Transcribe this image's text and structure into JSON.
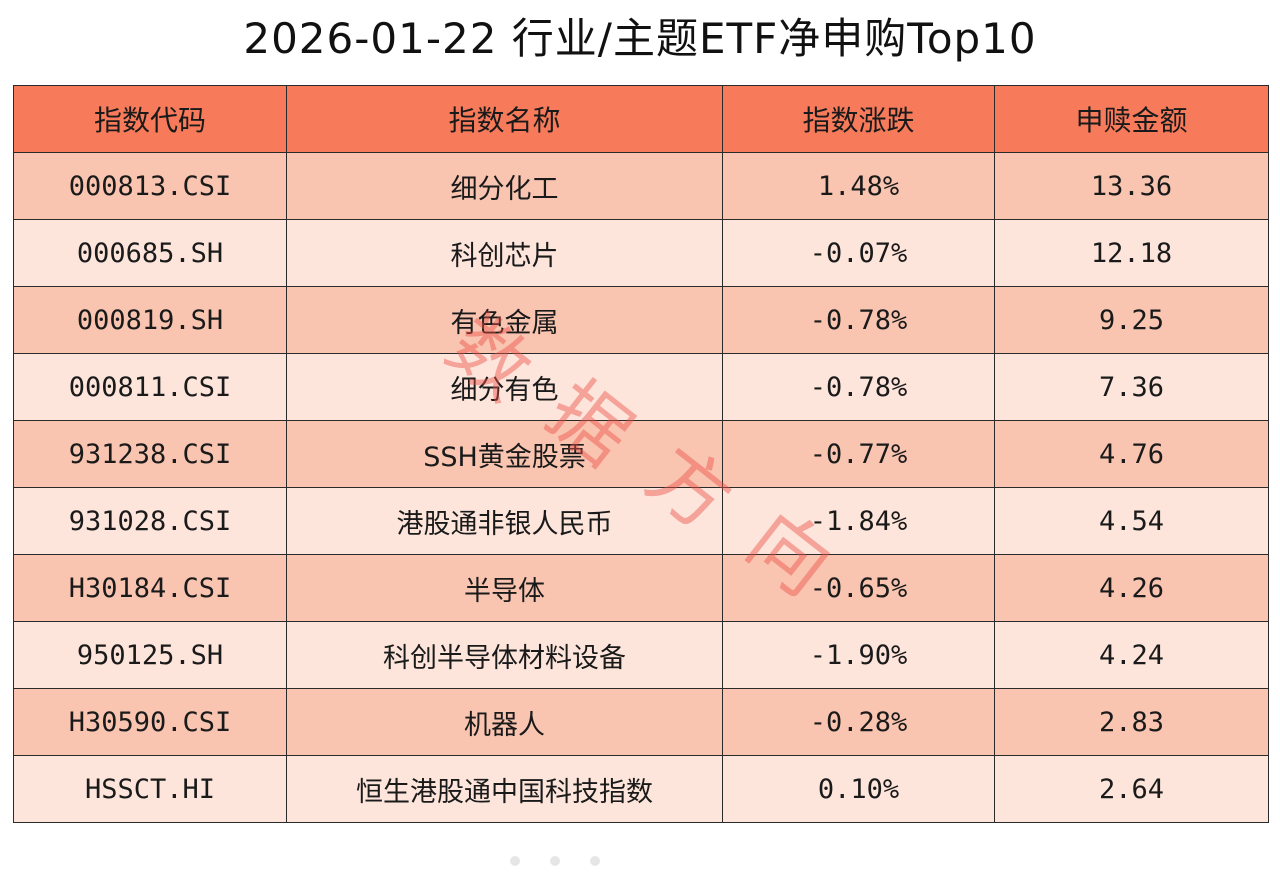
{
  "title": "2026-01-22 行业/主题ETF净申购Top10",
  "watermark": [
    "数",
    "据",
    "方",
    "向"
  ],
  "colors": {
    "header": "#f77b5a",
    "row_odd": "#f9c5b1",
    "row_even": "#fde5dc",
    "border": "#2a2a2a",
    "watermark": "#eb5046"
  },
  "chart_data": {
    "type": "table",
    "columns": [
      "指数代码",
      "指数名称",
      "指数涨跌",
      "申赎金额"
    ],
    "rows": [
      [
        "000813.CSI",
        "细分化工",
        "1.48%",
        "13.36"
      ],
      [
        "000685.SH",
        "科创芯片",
        "-0.07%",
        "12.18"
      ],
      [
        "000819.SH",
        "有色金属",
        "-0.78%",
        "9.25"
      ],
      [
        "000811.CSI",
        "细分有色",
        "-0.78%",
        "7.36"
      ],
      [
        "931238.CSI",
        "SSH黄金股票",
        "-0.77%",
        "4.76"
      ],
      [
        "931028.CSI",
        "港股通非银人民币",
        "-1.84%",
        "4.54"
      ],
      [
        "H30184.CSI",
        "半导体",
        "-0.65%",
        "4.26"
      ],
      [
        "950125.SH",
        "科创半导体材料设备",
        "-1.90%",
        "4.24"
      ],
      [
        "H30590.CSI",
        "机器人",
        "-0.28%",
        "2.83"
      ],
      [
        "HSSCT.HI",
        "恒生港股通中国科技指数",
        "0.10%",
        "2.64"
      ]
    ]
  }
}
